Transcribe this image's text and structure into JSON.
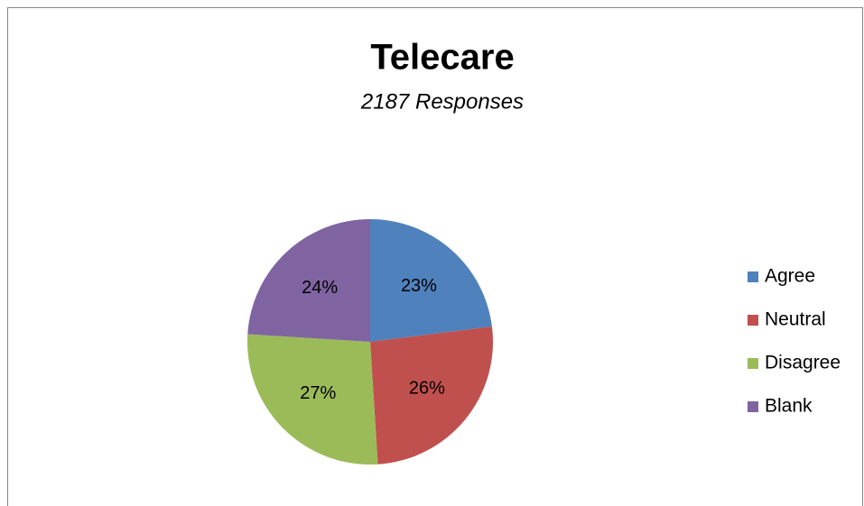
{
  "chart_data": {
    "type": "pie",
    "title": "Telecare",
    "subtitle": "2187 Responses",
    "categories": [
      "Agree",
      "Neutral",
      "Disagree",
      "Blank"
    ],
    "values": [
      23,
      26,
      27,
      24
    ],
    "value_labels": [
      "23%",
      "26%",
      "27%",
      "24%"
    ],
    "colors": [
      "#4f81bd",
      "#c0504d",
      "#9bbb59",
      "#8064a2"
    ],
    "legend": "right"
  }
}
